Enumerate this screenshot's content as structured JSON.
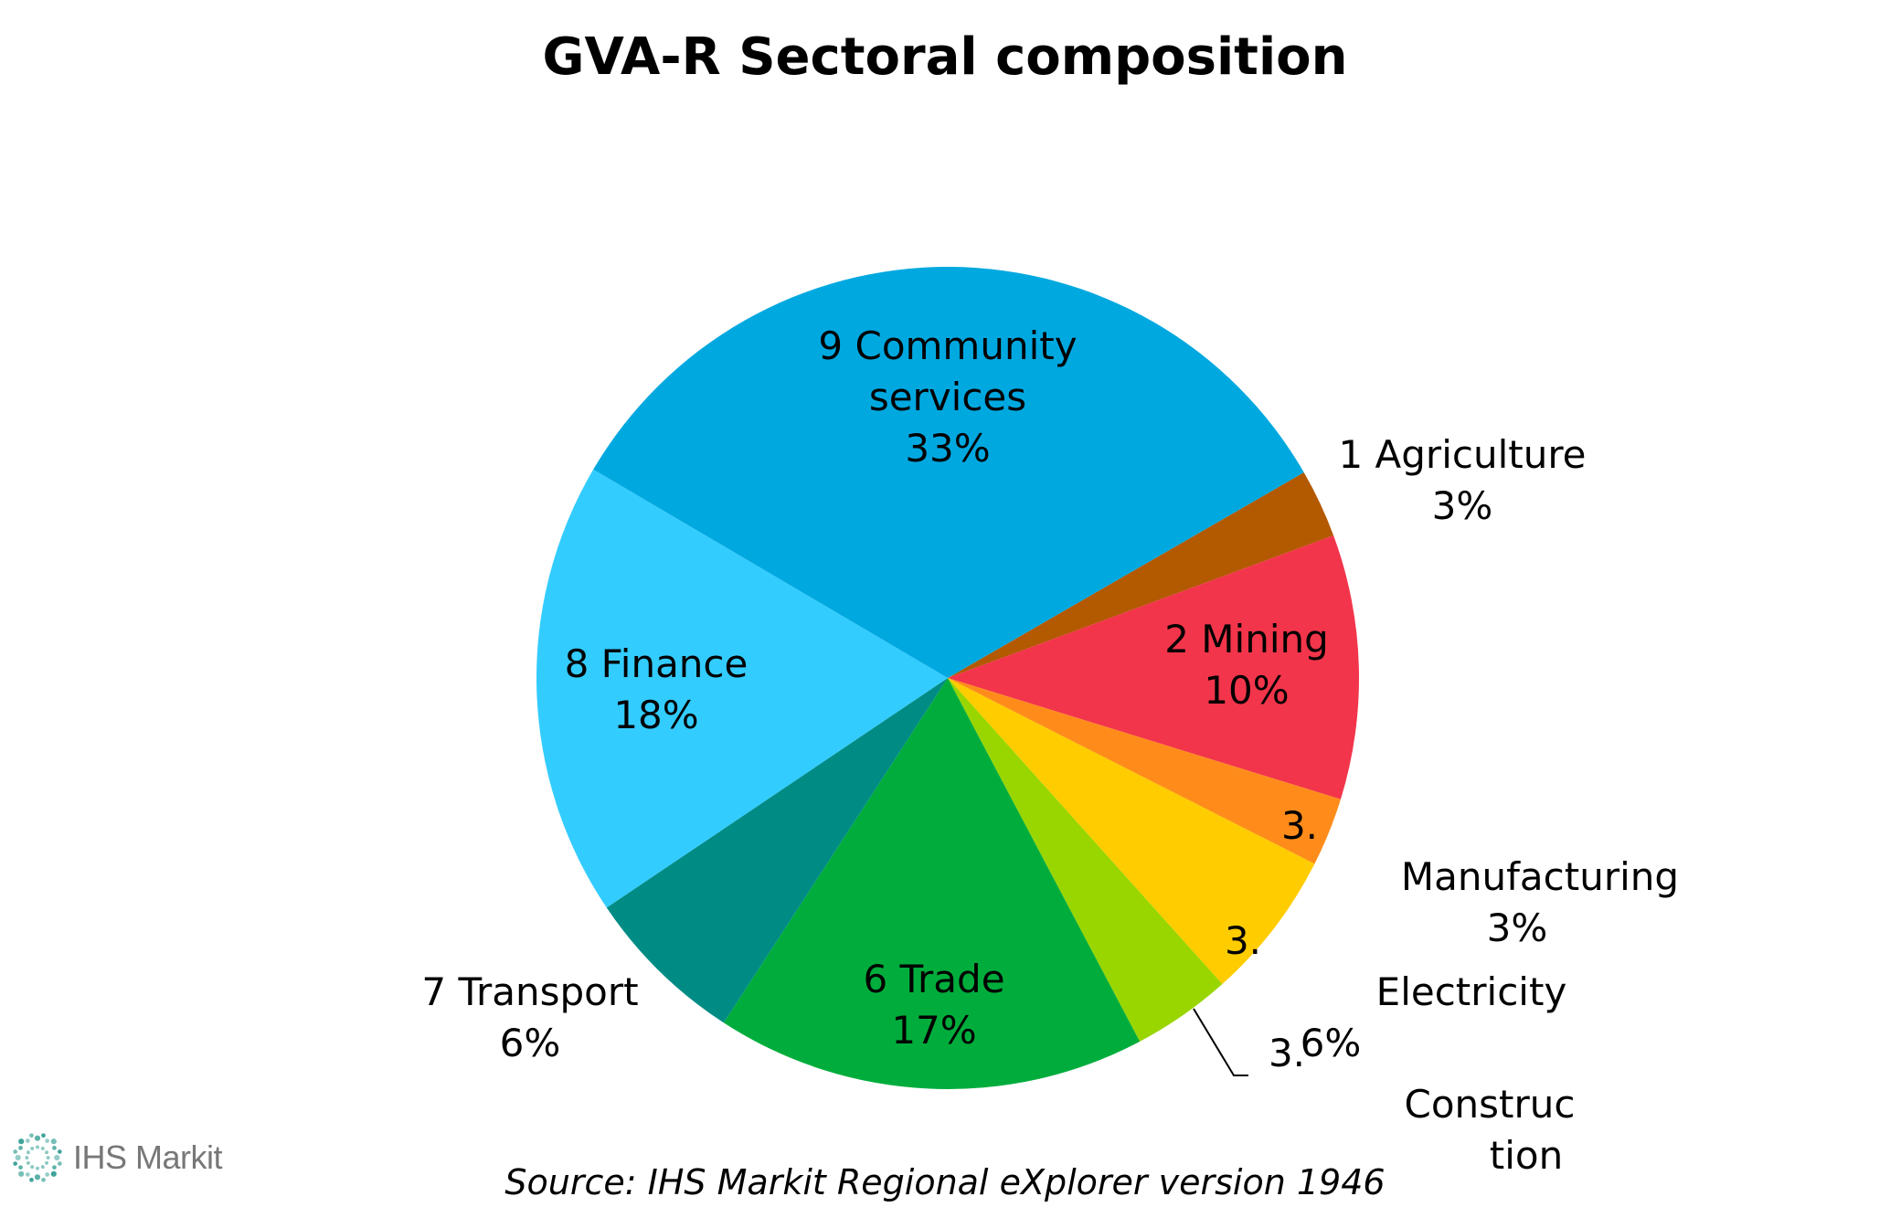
{
  "colors": {
    "agriculture": "#B35900",
    "mining": "#F2354B",
    "manufacturing": "#FF8C1A",
    "electricity": "#FFCC00",
    "construction": "#99D600",
    "trade": "#00AD3C",
    "transport": "#008C84",
    "finance": "#33CCFF",
    "community": "#00A8E0",
    "logo": "#3FA39A"
  },
  "logo": {
    "text": "IHS Markit",
    "icon": "ihs-markit-burst-icon"
  },
  "source_note": "Source: IHS Markit Regional eXplorer version 1946",
  "chart_data": {
    "type": "pie",
    "title": "GVA-R Sectoral composition",
    "start_angle_deg": 60,
    "direction": "clockwise",
    "slices": [
      {
        "label_lines": [
          "1 Agriculture",
          "3%"
        ],
        "value": 2.7,
        "color_key": "agriculture"
      },
      {
        "label_lines": [
          "2 Mining",
          "10%"
        ],
        "value": 10.4,
        "color_key": "mining"
      },
      {
        "label_lines": [
          "3.",
          "Manufacturing",
          "3%"
        ],
        "value": 2.7,
        "color_key": "manufacturing"
      },
      {
        "label_lines": [
          "3.",
          "Electricity",
          "6%"
        ],
        "value": 5.9,
        "color_key": "electricity"
      },
      {
        "label_lines": [
          "3.",
          "Construc",
          "tion"
        ],
        "value": 3.9,
        "color_key": "construction"
      },
      {
        "label_lines": [
          "6 Trade",
          "17%"
        ],
        "value": 16.9,
        "color_key": "trade"
      },
      {
        "label_lines": [
          "7 Transport",
          "6%"
        ],
        "value": 6.4,
        "color_key": "transport"
      },
      {
        "label_lines": [
          "8 Finance",
          "18%"
        ],
        "value": 17.9,
        "color_key": "finance"
      },
      {
        "label_lines": [
          "9 Community",
          "services",
          "33%"
        ],
        "value": 33.2,
        "color_key": "community"
      }
    ]
  }
}
